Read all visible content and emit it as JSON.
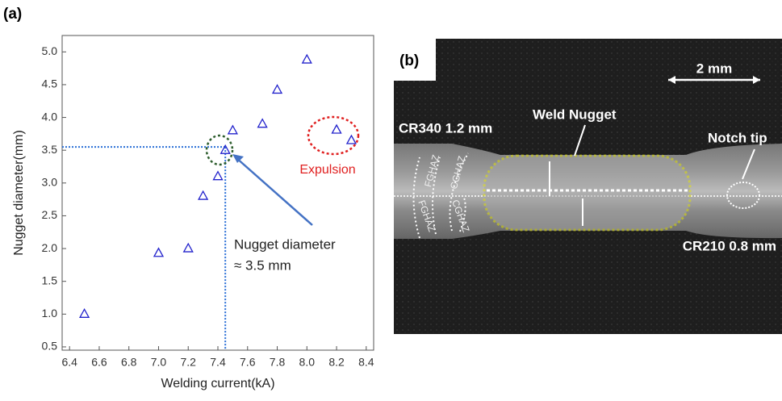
{
  "chart_data": {
    "type": "scatter",
    "panel_label": "(a)",
    "xlabel": "Welding current(kA)",
    "ylabel": "Nugget diameter(mm)",
    "x": [
      6.5,
      7.0,
      7.2,
      7.3,
      7.4,
      7.45,
      7.5,
      7.7,
      7.8,
      8.0,
      8.2,
      8.3
    ],
    "series": [
      {
        "color": "#2222cc",
        "values": [
          1.0,
          1.93,
          2.0,
          2.8,
          3.1,
          3.5,
          3.8,
          3.9,
          4.42,
          4.88,
          3.81,
          3.65
        ]
      }
    ],
    "xlim": [
      6.35,
      8.45
    ],
    "ylim": [
      0.45,
      5.25
    ],
    "xticks": [
      6.4,
      6.6,
      6.8,
      {
        "value": 7,
        "label": "7.0"
      },
      7.2,
      7.4,
      7.6,
      7.8,
      {
        "value": 8,
        "label": "8.0"
      },
      8.2,
      8.4
    ],
    "yticks": [
      0.5,
      {
        "value": 1,
        "label": "1.0"
      },
      1.5,
      {
        "value": 2,
        "label": "2.0"
      },
      2.5,
      {
        "value": 3,
        "label": "3.0"
      },
      3.5,
      {
        "value": 4,
        "label": "4.0"
      },
      4.5,
      {
        "value": 5,
        "label": "5.0"
      }
    ],
    "reference_lines": {
      "x": 7.45,
      "y": 3.55
    },
    "annotations": {
      "expulsion": "Expulsion",
      "nugget_line1": "Nugget diameter",
      "nugget_line2": "≈ 3.5 mm"
    }
  },
  "micrograph": {
    "panel_label": "(b)",
    "scale_bar": "2 mm",
    "upper_sheet": "CR340 1.2 mm",
    "lower_sheet": "CR210 0.8 mm",
    "weld_nugget": "Weld Nugget",
    "notch_tip": "Notch tip",
    "zones": [
      "FGHAZ",
      "CGHAZ",
      "CGHAZ",
      "FGHAZ"
    ]
  }
}
